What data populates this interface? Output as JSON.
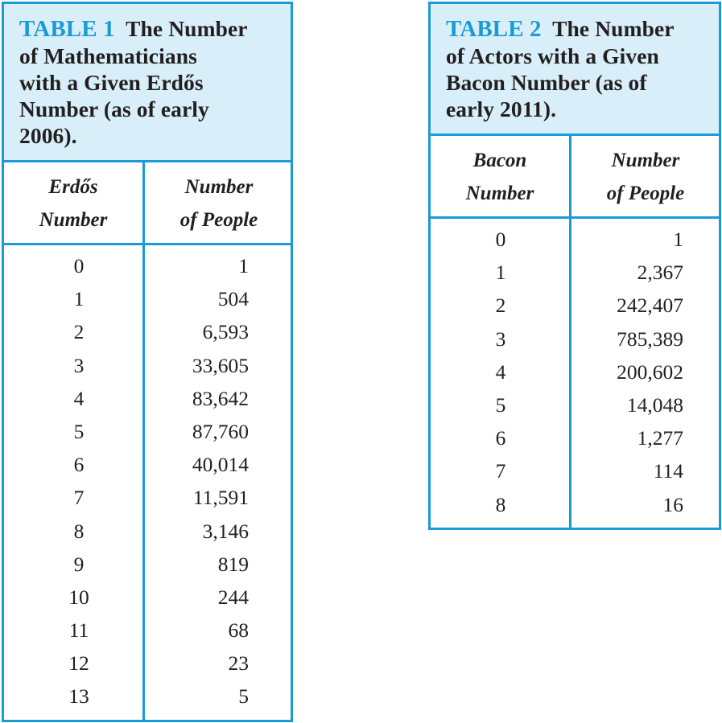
{
  "table1": {
    "caption_label": "TABLE 1",
    "caption_lines": [
      "The Number",
      "of Mathematicians",
      "with a Given Erdős",
      "Number (as of early",
      "2006)."
    ],
    "col1_header": [
      "Erdős",
      "Number"
    ],
    "col2_header": [
      "Number",
      "of People"
    ],
    "rows": [
      [
        "0",
        "1"
      ],
      [
        "1",
        "504"
      ],
      [
        "2",
        "6,593"
      ],
      [
        "3",
        "33,605"
      ],
      [
        "4",
        "83,642"
      ],
      [
        "5",
        "87,760"
      ],
      [
        "6",
        "40,014"
      ],
      [
        "7",
        "11,591"
      ],
      [
        "8",
        "3,146"
      ],
      [
        "9",
        "819"
      ],
      [
        "10",
        "244"
      ],
      [
        "11",
        "68"
      ],
      [
        "12",
        "23"
      ],
      [
        "13",
        "5"
      ]
    ]
  },
  "table2": {
    "caption_label": "TABLE 2",
    "caption_lines": [
      "The Number",
      "of Actors with a Given",
      "Bacon Number (as of",
      "early 2011)."
    ],
    "col1_header": [
      "Bacon",
      "Number"
    ],
    "col2_header": [
      "Number",
      "of People"
    ],
    "rows": [
      [
        "0",
        "1"
      ],
      [
        "1",
        "2,367"
      ],
      [
        "2",
        "242,407"
      ],
      [
        "3",
        "785,389"
      ],
      [
        "4",
        "200,602"
      ],
      [
        "5",
        "14,048"
      ],
      [
        "6",
        "1,277"
      ],
      [
        "7",
        "114"
      ],
      [
        "8",
        "16"
      ]
    ]
  },
  "colors": {
    "border": "#1a9ad6",
    "caption_bg": "#d8eef9",
    "label": "#1a9ad6",
    "text": "#231f20"
  }
}
